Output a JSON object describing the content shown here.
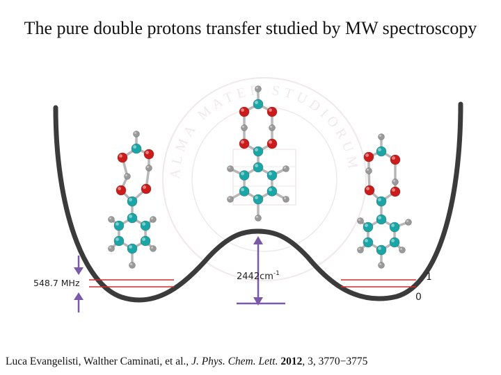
{
  "slide": {
    "title": "The pure double protons transfer studied by MW spectroscopy"
  },
  "diagram": {
    "splitting_label": "548.7 MHz",
    "barrier_value": "2442cm",
    "barrier_exponent": "-1",
    "level_upper": "1",
    "level_lower": "0",
    "seal_text": "ALMA MATER STUDIORUM · UNIVERSITAS · DI BOLOGNA · A.D. 1088",
    "colors": {
      "curve": "#3b3b3b",
      "levels": "#d42a2a",
      "arrows": "#7a5aa6",
      "carbon": "#1aa6a6",
      "oxygen": "#cc1b1b",
      "hydrogen": "#9a9a9a",
      "seal": "#e3d8d8"
    }
  },
  "citation": {
    "authors": "Luca Evangelisti, Walther Caminati, et al., ",
    "journal": "J. Phys. Chem. Lett.",
    "year": "2012",
    "details": ", 3, 3770−3775"
  }
}
